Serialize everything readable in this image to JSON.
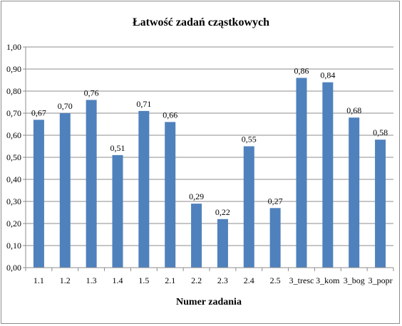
{
  "chart_data": {
    "type": "bar",
    "title": "Łatwość zadań cząstkowych",
    "xlabel": "Numer zadania",
    "ylabel": "",
    "ylim": [
      0,
      1
    ],
    "ytick_step": 0.1,
    "ytick_labels": [
      "0,00",
      "0,10",
      "0,20",
      "0,30",
      "0,40",
      "0,50",
      "0,60",
      "0,70",
      "0,80",
      "0,90",
      "1,00"
    ],
    "grid": true,
    "legend": "none",
    "bar_color": "#4f81bd",
    "categories": [
      "1.1",
      "1.2",
      "1.3",
      "1.4",
      "1.5",
      "2.1",
      "2.2",
      "2.3",
      "2.4",
      "2.5",
      "3_tresc",
      "3_kom",
      "3_bog",
      "3_popr"
    ],
    "values": [
      0.67,
      0.7,
      0.76,
      0.51,
      0.71,
      0.66,
      0.29,
      0.22,
      0.55,
      0.27,
      0.86,
      0.84,
      0.68,
      0.58
    ],
    "value_labels": [
      "0,67",
      "0,70",
      "0,76",
      "0,51",
      "0,71",
      "0,66",
      "0,29",
      "0,22",
      "0,55",
      "0,27",
      "0,86",
      "0,84",
      "0,68",
      "0,58"
    ]
  }
}
